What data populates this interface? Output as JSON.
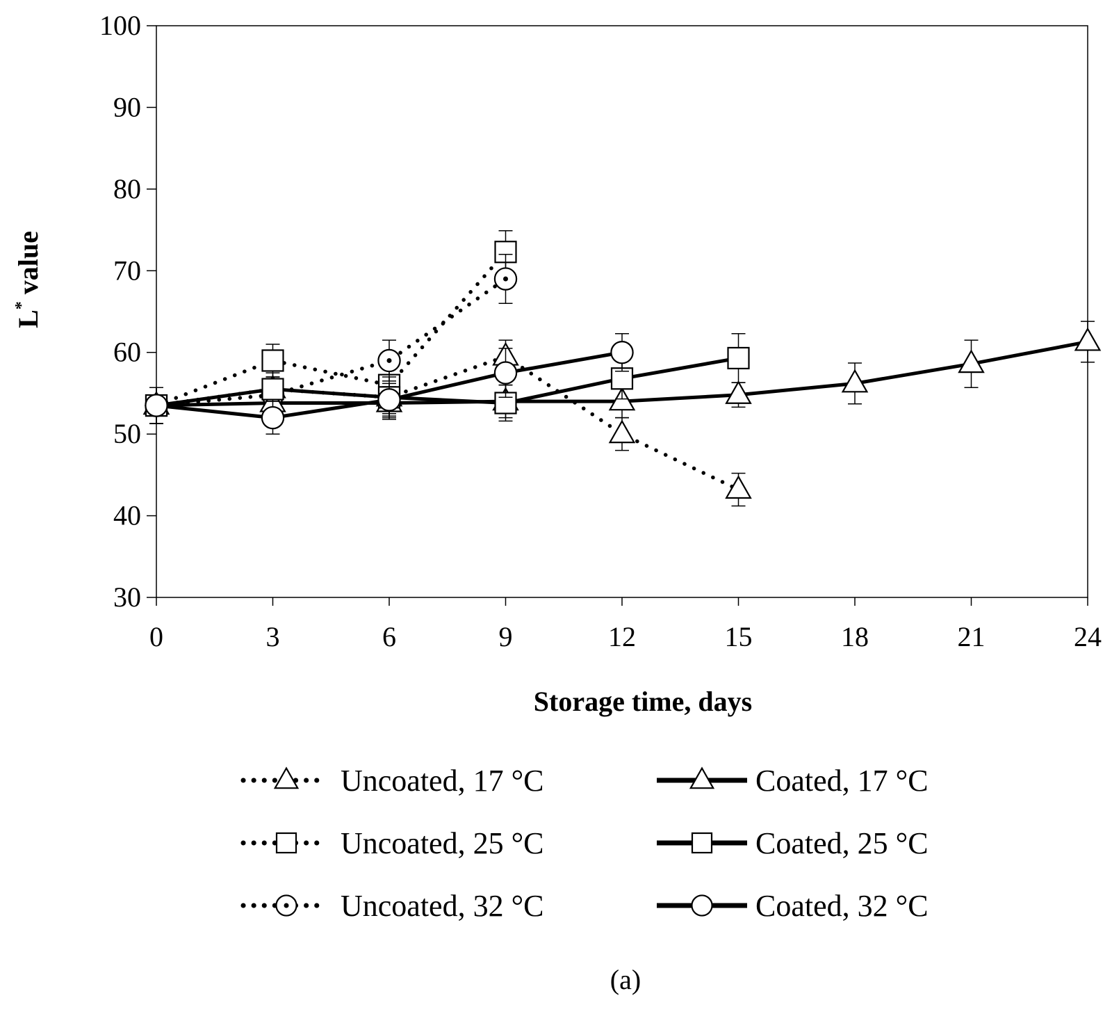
{
  "chart_data": {
    "type": "line",
    "title": "",
    "xlabel": "Storage time, days",
    "ylabel_main": "L",
    "ylabel_superscript": "*",
    "ylabel_suffix": "value",
    "xlim": [
      0,
      24
    ],
    "ylim": [
      30,
      100
    ],
    "xticks": [
      0,
      3,
      6,
      9,
      12,
      15,
      18,
      21,
      24
    ],
    "yticks": [
      30,
      40,
      50,
      60,
      70,
      80,
      90,
      100
    ],
    "grid": false,
    "legend_position": "bottom",
    "caption": "(a)",
    "series": [
      {
        "name": "Uncoated, 17 °C",
        "line": "dotted",
        "marker": "triangle",
        "x": [
          0,
          3,
          6,
          9,
          12,
          15
        ],
        "y": [
          53.5,
          55.5,
          54.5,
          59.5,
          50,
          43.2
        ],
        "err": [
          2.2,
          2.0,
          2.0,
          2.0,
          2.0,
          2.0
        ]
      },
      {
        "name": "Uncoated, 25 °C",
        "line": "dotted",
        "marker": "square",
        "x": [
          0,
          3,
          6,
          9
        ],
        "y": [
          53.5,
          59,
          56,
          72.3
        ],
        "err": [
          2.2,
          2.0,
          2.5,
          2.6
        ]
      },
      {
        "name": "Uncoated, 32 °C",
        "line": "dotted",
        "marker": "circle-dot",
        "x": [
          0,
          3,
          6,
          9
        ],
        "y": [
          53.5,
          54.8,
          59,
          69
        ],
        "err": [
          2.2,
          2.0,
          2.5,
          3.0
        ]
      },
      {
        "name": "Coated, 17 °C",
        "line": "solid",
        "marker": "triangle",
        "x": [
          0,
          3,
          6,
          9,
          12,
          15,
          18,
          21,
          24
        ],
        "y": [
          53.5,
          53.8,
          53.8,
          54.0,
          54.0,
          54.8,
          56.2,
          58.6,
          61.3
        ],
        "err": [
          2.2,
          2.0,
          2.0,
          2.0,
          2.0,
          1.5,
          2.5,
          2.9,
          2.5
        ]
      },
      {
        "name": "Coated, 25 °C",
        "line": "solid",
        "marker": "square",
        "x": [
          0,
          3,
          6,
          9,
          12,
          15
        ],
        "y": [
          53.5,
          55.5,
          54.5,
          53.8,
          56.8,
          59.3
        ],
        "err": [
          2.2,
          1.5,
          2.5,
          2.2,
          2.5,
          3.0
        ]
      },
      {
        "name": "Coated, 32 °C",
        "line": "solid",
        "marker": "circle",
        "x": [
          0,
          3,
          6,
          9,
          12
        ],
        "y": [
          53.5,
          52,
          54.2,
          57.5,
          60
        ],
        "err": [
          2.2,
          2.0,
          2.0,
          3.0,
          2.3
        ]
      }
    ]
  }
}
